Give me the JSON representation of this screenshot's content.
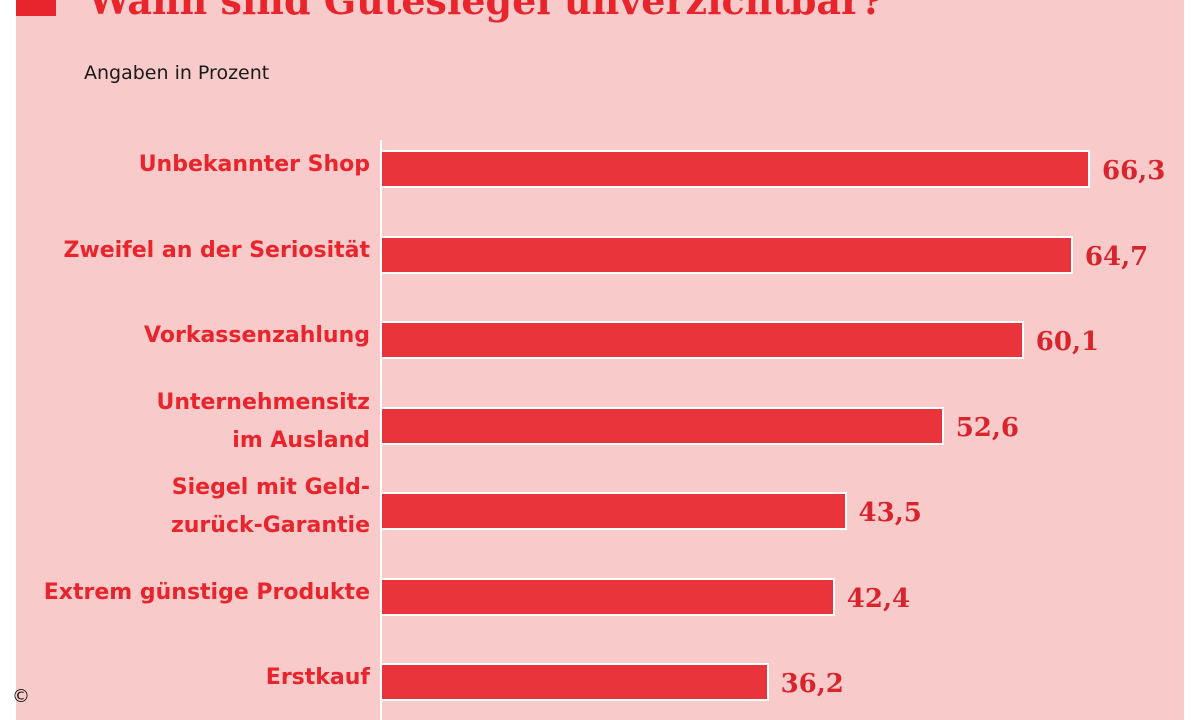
{
  "header": {
    "title": "Wann sind Gütesiegel unverzichtbar?",
    "subtitle": "Angaben in Prozent"
  },
  "footer": {
    "copyright": "©"
  },
  "colors": {
    "background": "#f9caca",
    "bar": "#e8343a",
    "accent": "#e8242c"
  },
  "chart_data": {
    "type": "bar",
    "orientation": "horizontal",
    "title": "Wann sind Gütesiegel unverzichtbar?",
    "subtitle": "Angaben in Prozent",
    "categories": [
      [
        "Unbekannter Shop"
      ],
      [
        "Zweifel an der Seriosität"
      ],
      [
        "Vorkassenzahlung"
      ],
      [
        "Unternehmensitz",
        "im Ausland"
      ],
      [
        "Siegel mit Geld-",
        "zurück-Garantie"
      ],
      [
        "Extrem günstige Produkte"
      ],
      [
        "Erstkauf"
      ]
    ],
    "values": [
      66.3,
      64.7,
      60.1,
      52.6,
      43.5,
      42.4,
      36.2
    ],
    "value_labels": [
      "66,3",
      "64,7",
      "60,1",
      "52,6",
      "43,5",
      "42,4",
      "36,2"
    ],
    "xlim": [
      0,
      66.3
    ],
    "grid": false,
    "legend": "none"
  }
}
